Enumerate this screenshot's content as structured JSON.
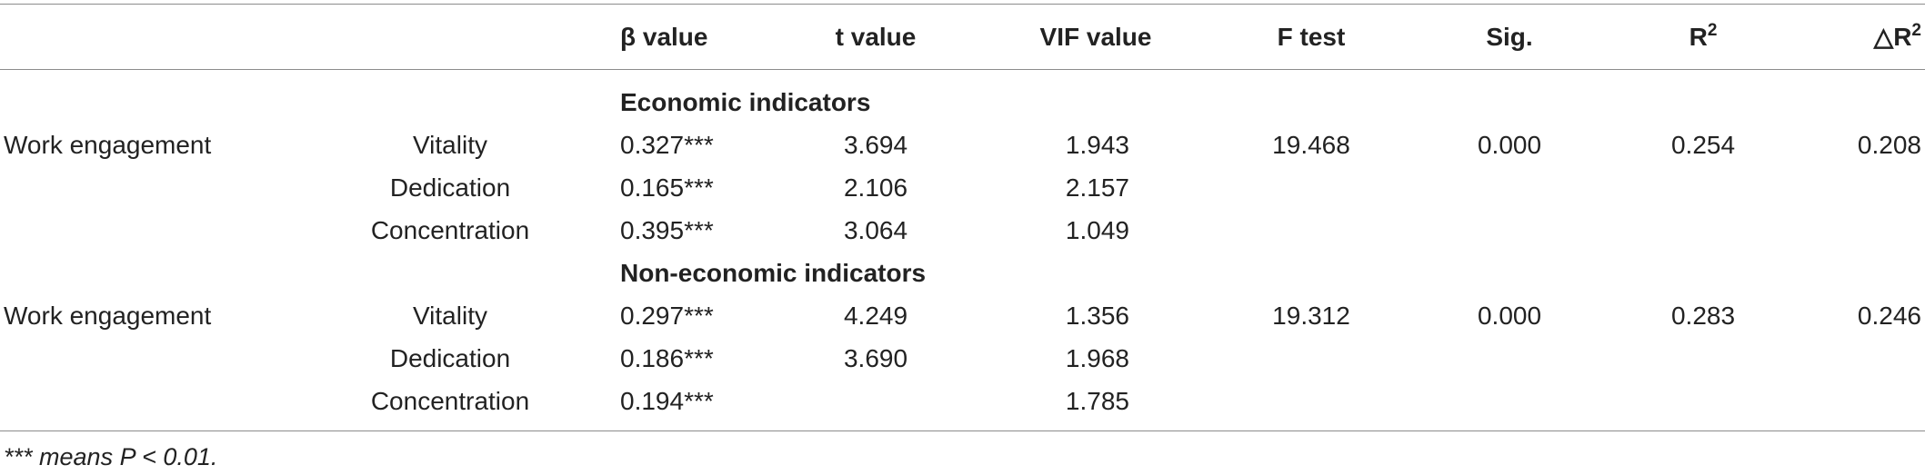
{
  "table": {
    "headers": {
      "beta": "β value",
      "t": "t value",
      "vif": "VIF value",
      "f": "F test",
      "sig": "Sig.",
      "r2_base": "R",
      "r2_sup": "2",
      "dr2_base": "△R",
      "dr2_sup": "2"
    },
    "groups": [
      {
        "title": "Economic indicators",
        "dependent": "Work engagement",
        "f": "19.468",
        "sig": "0.000",
        "r2": "0.254",
        "dr2": "0.208",
        "rows": [
          {
            "var": "Vitality",
            "beta": "0.327***",
            "t": "3.694",
            "vif": "1.943"
          },
          {
            "var": "Dedication",
            "beta": "0.165***",
            "t": "2.106",
            "vif": "2.157"
          },
          {
            "var": "Concentration",
            "beta": "0.395***",
            "t": "3.064",
            "vif": "1.049"
          }
        ]
      },
      {
        "title": "Non-economic indicators",
        "dependent": "Work engagement",
        "f": "19.312",
        "sig": "0.000",
        "r2": "0.283",
        "dr2": "0.246",
        "rows": [
          {
            "var": "Vitality",
            "beta": "0.297***",
            "t": "4.249",
            "vif": "1.356"
          },
          {
            "var": "Dedication",
            "beta": "0.186***",
            "t": "3.690",
            "vif": "1.968"
          },
          {
            "var": "Concentration",
            "beta": "0.194***",
            "t": "",
            "vif": "1.785"
          }
        ]
      }
    ],
    "footnote": "*** means P < 0.01."
  }
}
